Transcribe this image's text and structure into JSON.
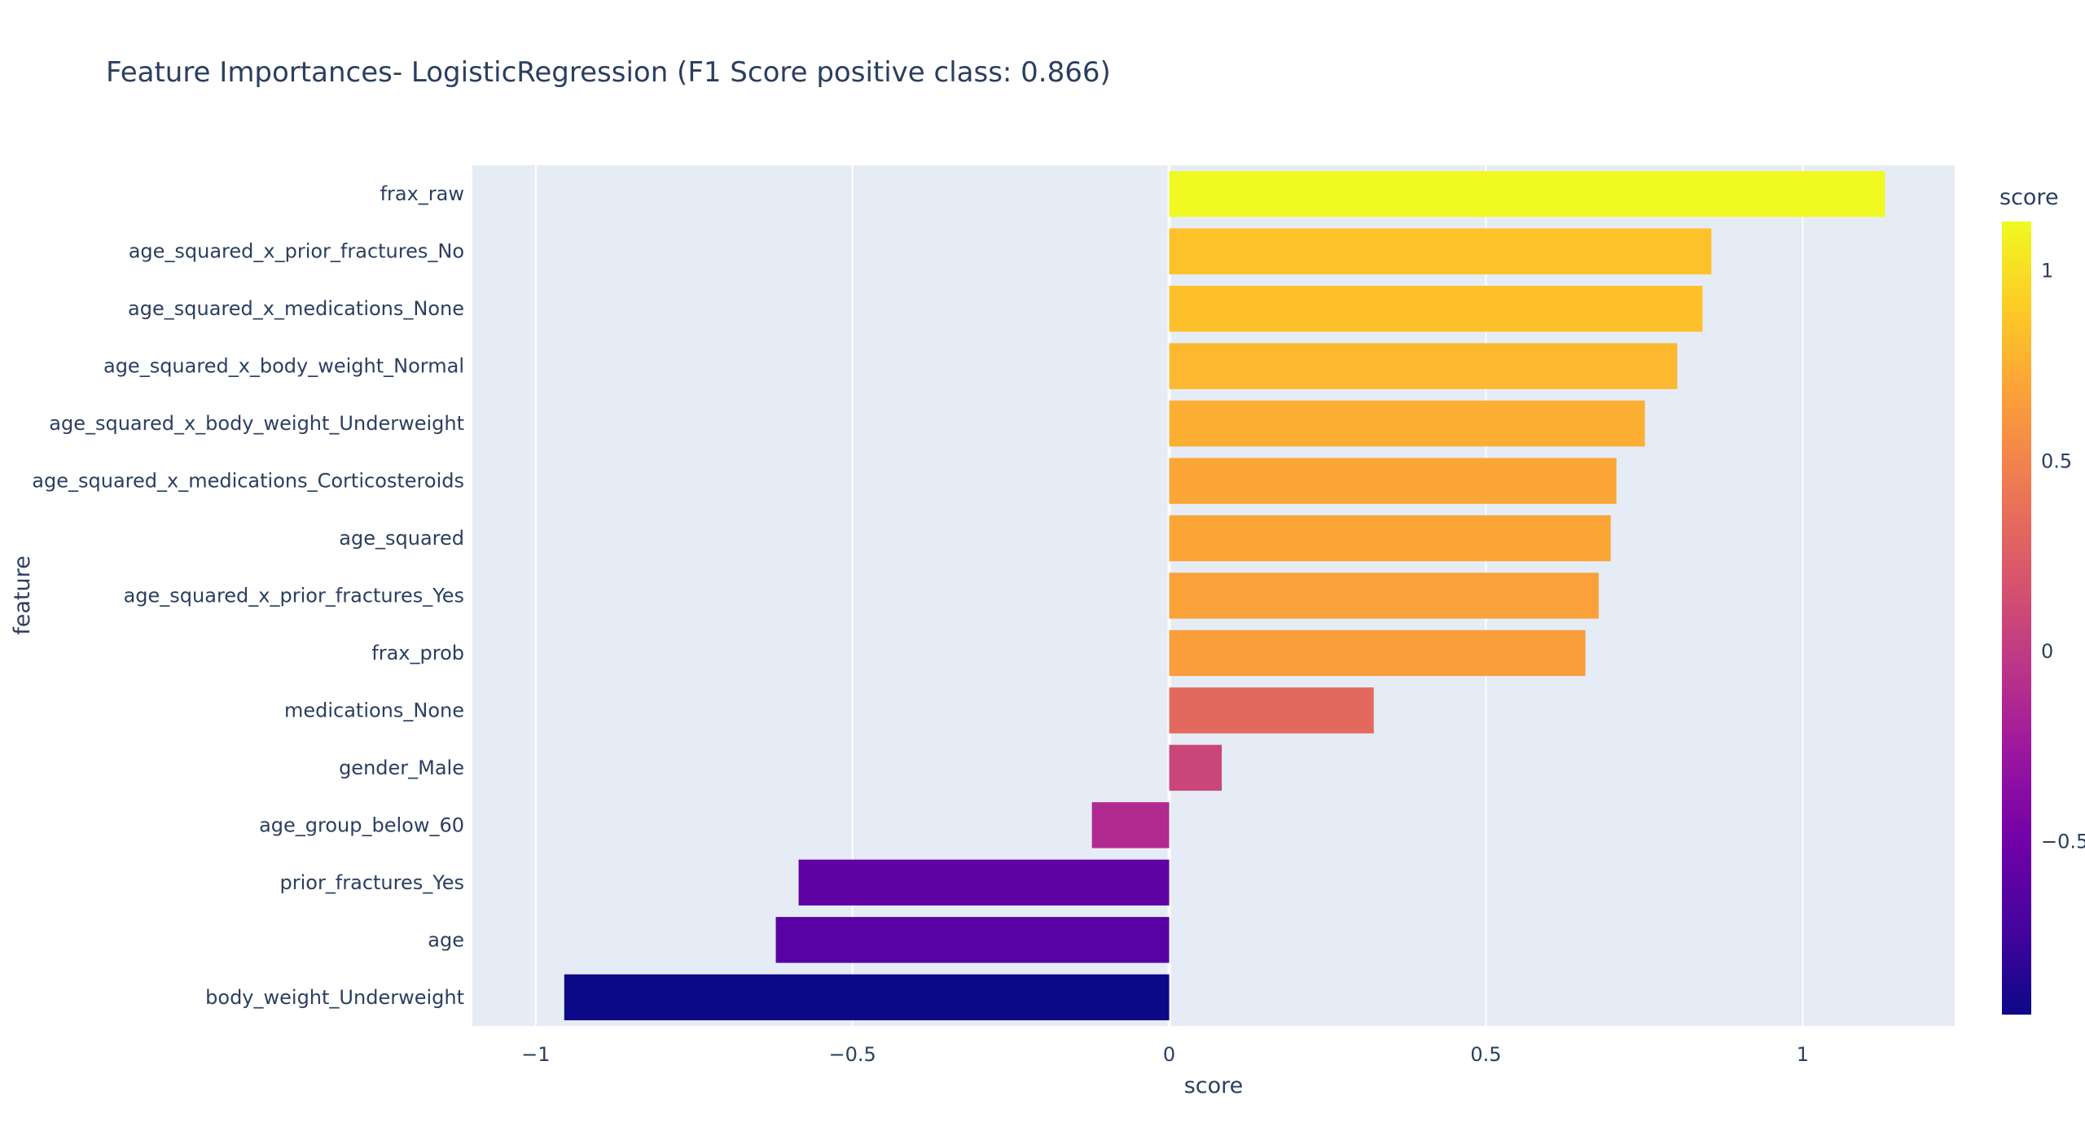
{
  "chart_data": {
    "type": "bar",
    "orientation": "horizontal",
    "title": "Feature Importances- LogisticRegression (F1 Score positive class: 0.866)",
    "xlabel": "score",
    "ylabel": "feature",
    "xlim": [
      -1.1,
      1.24
    ],
    "xticks": [
      -1,
      -0.5,
      0,
      0.5,
      1
    ],
    "xtick_labels": [
      "−1",
      "−0.5",
      "0",
      "0.5",
      "1"
    ],
    "categories": [
      "frax_raw",
      "age_squared_x_prior_fractures_No",
      "age_squared_x_medications_None",
      "age_squared_x_body_weight_Normal",
      "age_squared_x_body_weight_Underweight",
      "age_squared_x_medications_Corticosteroids",
      "age_squared",
      "age_squared_x_prior_fractures_Yes",
      "frax_prob",
      "medications_None",
      "gender_Male",
      "age_group_below_60",
      "prior_fractures_Yes",
      "age",
      "body_weight_Underweight"
    ],
    "values": [
      1.13,
      0.856,
      0.842,
      0.802,
      0.751,
      0.706,
      0.697,
      0.678,
      0.657,
      0.323,
      0.083,
      -0.122,
      -0.585,
      -0.621,
      -0.955
    ],
    "grid": true,
    "colorbar": {
      "title": "score",
      "range": [
        -0.955,
        1.13
      ],
      "ticks": [
        1,
        0.5,
        0,
        -0.5
      ],
      "tick_labels": [
        "1",
        "0.5",
        "0",
        "−0.5"
      ],
      "colorscale": [
        "#0d0887",
        "#46039f",
        "#7201a8",
        "#9c179e",
        "#bd3786",
        "#d8576b",
        "#ed7953",
        "#fb9f3a",
        "#fdca26",
        "#f0f921"
      ]
    },
    "colors": {
      "plot_bg": "#e5ecf6",
      "grid": "#ffffff",
      "text": "#2a3f5f"
    }
  }
}
